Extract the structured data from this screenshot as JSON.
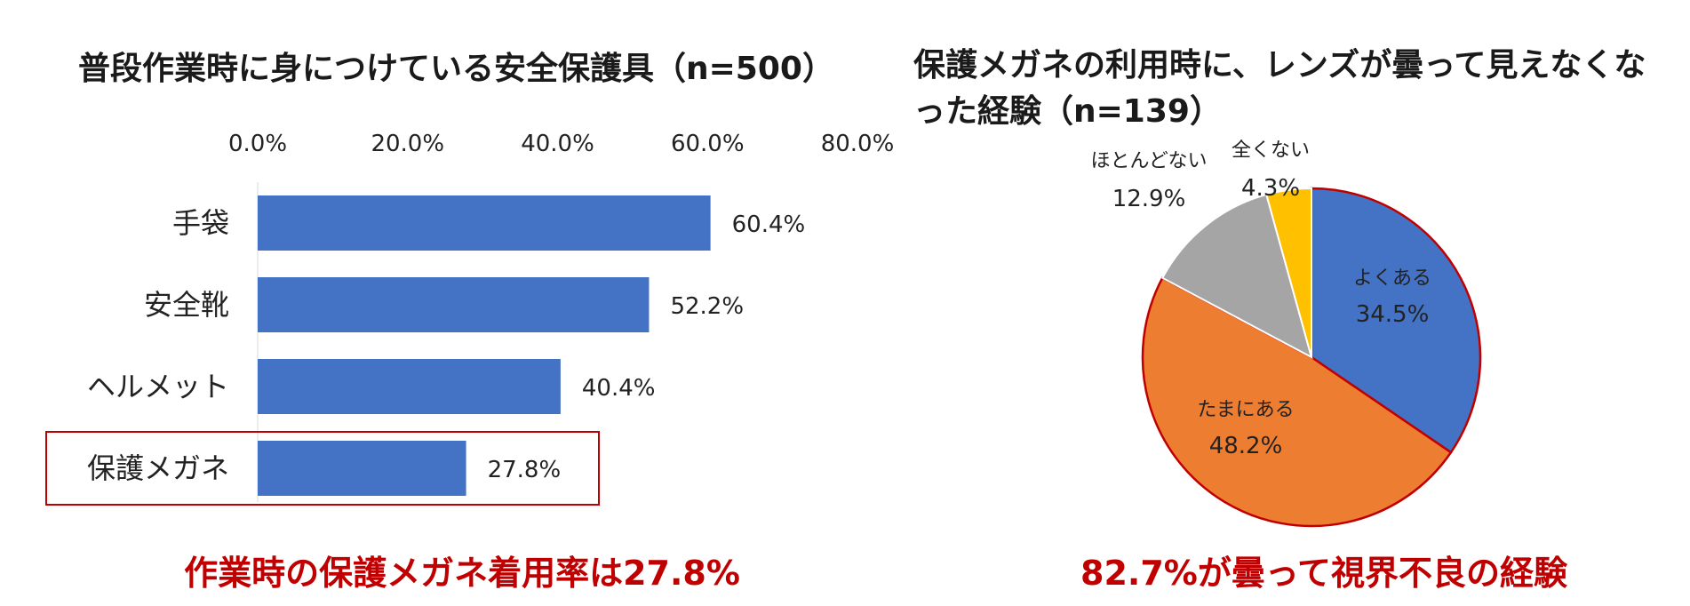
{
  "left": {
    "title": "普段作業時に身につけている安全保護具（n=500）",
    "conclusion": "作業時の保護メガネ着用率は27.8%",
    "highlight_category": "保護メガネ",
    "highlight_color": "#c00000"
  },
  "right": {
    "title": "保護メガネの利用時に、レンズが曇って見えなくなった経験（n=139）",
    "conclusion": "82.7%が曇って視界不良の経験"
  },
  "chart_data": [
    {
      "type": "bar",
      "orientation": "horizontal",
      "title": "普段作業時に身につけている安全保護具（n=500）",
      "categories": [
        "手袋",
        "安全靴",
        "ヘルメット",
        "保護メガネ"
      ],
      "values": [
        60.4,
        52.2,
        40.4,
        27.8
      ],
      "value_labels": [
        "60.4%",
        "52.2%",
        "40.4%",
        "27.8%"
      ],
      "xlim": [
        0,
        80
      ],
      "ticks": [
        "0.0%",
        "20.0%",
        "40.0%",
        "60.0%",
        "80.0%"
      ],
      "axis_position": "top",
      "grid": false,
      "bar_color": "#4472c4"
    },
    {
      "type": "pie",
      "title": "保護メガネの利用時に、レンズが曇って見えなくなった経験（n=139）",
      "slices": [
        {
          "label": "よくある",
          "value": 34.5,
          "value_label": "34.5%",
          "color": "#4472c4"
        },
        {
          "label": "たまにある",
          "value": 48.2,
          "value_label": "48.2%",
          "color": "#ed7d31"
        },
        {
          "label": "ほとんどない",
          "value": 12.9,
          "value_label": "12.9%",
          "color": "#a5a5a5"
        },
        {
          "label": "全くない",
          "value": 4.3,
          "value_label": "4.3%",
          "color": "#ffc000"
        }
      ],
      "highlighted_slices": [
        "よくある",
        "たまにある"
      ],
      "highlight_color": "#c00000"
    }
  ]
}
